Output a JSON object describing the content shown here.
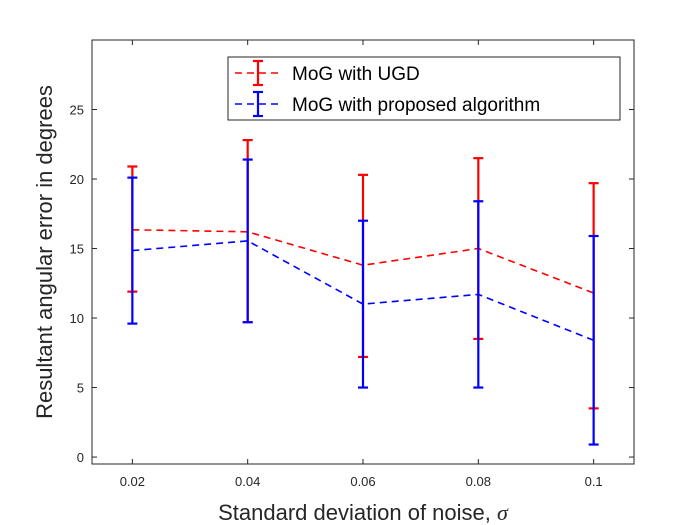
{
  "chart_data": {
    "type": "line",
    "title": "",
    "xlabel": "Standard deviation of noise,",
    "xlabel_symbol": "σ",
    "ylabel": "Resultant angular error in degrees",
    "xlim": [
      0.013,
      0.107
    ],
    "ylim": [
      -0.5,
      30
    ],
    "x_ticks": [
      0.02,
      0.04,
      0.06,
      0.08,
      0.1
    ],
    "x_tick_labels": [
      "0.02",
      "0.04",
      "0.06",
      "0.08",
      "0.1"
    ],
    "y_ticks": [
      0,
      5,
      10,
      15,
      20,
      25
    ],
    "y_tick_labels": [
      "0",
      "5",
      "10",
      "15",
      "20",
      "25"
    ],
    "grid": false,
    "legend_position": "top-right",
    "x": [
      0.02,
      0.04,
      0.06,
      0.08,
      0.1
    ],
    "series": [
      {
        "name": "MoG with UGD",
        "color": "#ff0000",
        "line_style": "dashed",
        "values": [
          16.35,
          16.2,
          13.8,
          15.0,
          11.8
        ],
        "lower": [
          11.9,
          9.7,
          7.2,
          8.5,
          3.5
        ],
        "upper": [
          20.9,
          22.8,
          20.3,
          21.5,
          19.7
        ]
      },
      {
        "name": "MoG with proposed algorithm",
        "color": "#0000ff",
        "line_style": "dashed",
        "values": [
          14.85,
          15.55,
          11.0,
          11.7,
          8.4
        ],
        "lower": [
          9.6,
          9.7,
          5.0,
          5.0,
          0.9
        ],
        "upper": [
          20.1,
          21.4,
          17.0,
          18.4,
          15.9
        ]
      }
    ]
  }
}
